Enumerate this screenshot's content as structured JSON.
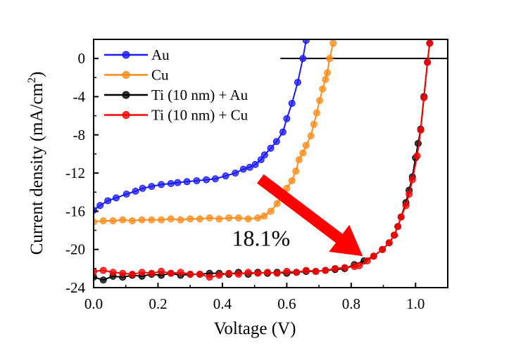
{
  "chart_data": {
    "type": "line",
    "title": "",
    "xlabel": "Voltage (V)",
    "ylabel": "Current density (mA/cm²)",
    "ylabel_main": "Current density (mA/cm",
    "ylabel_sup": "2",
    "ylabel_end": ")",
    "xlim": [
      0,
      1.1
    ],
    "ylim": [
      -24,
      2
    ],
    "xticks": [
      0.0,
      0.2,
      0.4,
      0.6,
      0.8,
      1.0
    ],
    "xtick_labels": [
      "0.0",
      "0.2",
      "0.4",
      "0.6",
      "0.8",
      "1.0"
    ],
    "yticks": [
      0,
      -4,
      -8,
      -12,
      -16,
      -20,
      -24
    ],
    "ytick_labels": [
      "0",
      "-4",
      "-8",
      "-12",
      "-16",
      "-20",
      "-24"
    ],
    "grid": false,
    "legend_position": "top-left",
    "zero_line": {
      "x_start": 0.58,
      "x_end": 1.1,
      "y": 0
    },
    "series": [
      {
        "name": "Au",
        "color": "#1a1aff",
        "x": [
          0.0,
          0.02,
          0.044,
          0.07,
          0.102,
          0.13,
          0.152,
          0.18,
          0.21,
          0.24,
          0.261,
          0.29,
          0.32,
          0.35,
          0.378,
          0.41,
          0.44,
          0.465,
          0.485,
          0.502,
          0.52,
          0.531,
          0.55,
          0.568,
          0.588,
          0.6,
          0.616,
          0.634,
          0.65,
          0.66
        ],
        "y": [
          -15.9,
          -15.4,
          -14.9,
          -14.6,
          -14.2,
          -13.9,
          -13.6,
          -13.4,
          -13.2,
          -13.1,
          -13.0,
          -12.9,
          -12.8,
          -12.7,
          -12.6,
          -12.3,
          -12.0,
          -11.6,
          -11.4,
          -11.1,
          -10.6,
          -10.1,
          -9.4,
          -8.7,
          -7.7,
          -6.3,
          -4.7,
          -2.5,
          0.0,
          1.9
        ]
      },
      {
        "name": "Cu",
        "color": "#ff8c1a",
        "x": [
          0.0,
          0.03,
          0.06,
          0.09,
          0.12,
          0.15,
          0.18,
          0.21,
          0.24,
          0.27,
          0.3,
          0.33,
          0.36,
          0.39,
          0.42,
          0.45,
          0.48,
          0.51,
          0.53,
          0.55,
          0.57,
          0.586,
          0.6,
          0.616,
          0.628,
          0.638,
          0.65,
          0.66,
          0.675,
          0.684,
          0.693,
          0.702,
          0.711,
          0.72,
          0.726,
          0.733,
          0.744
        ],
        "y": [
          -17.1,
          -17.0,
          -17.0,
          -16.9,
          -17.0,
          -16.9,
          -16.9,
          -16.9,
          -16.8,
          -16.9,
          -16.8,
          -16.8,
          -16.7,
          -16.8,
          -16.7,
          -16.7,
          -16.8,
          -16.7,
          -16.5,
          -16.0,
          -15.2,
          -14.3,
          -13.6,
          -12.8,
          -11.8,
          -10.6,
          -9.9,
          -9.1,
          -8.1,
          -6.9,
          -5.7,
          -4.4,
          -3.2,
          -2.2,
          -1.5,
          0.0,
          1.6
        ]
      },
      {
        "name": "Ti (10 nm) + Au",
        "color": "#000000",
        "x": [
          0.0,
          0.03,
          0.06,
          0.09,
          0.12,
          0.15,
          0.18,
          0.21,
          0.24,
          0.27,
          0.3,
          0.33,
          0.36,
          0.39,
          0.42,
          0.45,
          0.48,
          0.51,
          0.54,
          0.57,
          0.6,
          0.63,
          0.66,
          0.69,
          0.72,
          0.75,
          0.78,
          0.81,
          0.84,
          0.87,
          0.897,
          0.918,
          0.934,
          0.945,
          0.955,
          0.97,
          0.98,
          0.99,
          1.0,
          1.008,
          1.016,
          1.026,
          1.037,
          1.044
        ],
        "y": [
          -22.9,
          -23.2,
          -22.8,
          -22.9,
          -22.7,
          -22.8,
          -22.6,
          -22.7,
          -22.5,
          -22.7,
          -22.6,
          -22.6,
          -22.5,
          -22.5,
          -22.6,
          -22.4,
          -22.6,
          -22.4,
          -22.5,
          -22.4,
          -22.5,
          -22.4,
          -22.3,
          -22.3,
          -22.2,
          -22.1,
          -22.0,
          -21.6,
          -21.2,
          -20.7,
          -20.0,
          -19.3,
          -18.5,
          -17.6,
          -16.6,
          -15.1,
          -13.8,
          -12.4,
          -10.4,
          -8.9,
          -7.4,
          -4.0,
          -0.4,
          1.6
        ]
      },
      {
        "name": "Ti (10 nm) + Cu",
        "color": "#ff0000",
        "x": [
          0.0,
          0.03,
          0.06,
          0.09,
          0.12,
          0.15,
          0.18,
          0.21,
          0.24,
          0.27,
          0.3,
          0.33,
          0.36,
          0.39,
          0.42,
          0.45,
          0.48,
          0.51,
          0.54,
          0.57,
          0.6,
          0.63,
          0.66,
          0.69,
          0.72,
          0.75,
          0.78,
          0.81,
          0.825,
          0.85,
          0.87,
          0.897,
          0.918,
          0.934,
          0.945,
          0.955,
          0.97,
          0.98,
          0.99,
          1.005,
          1.016,
          1.026,
          1.037,
          1.044
        ],
        "y": [
          -22.3,
          -22.2,
          -22.4,
          -22.5,
          -22.6,
          -22.4,
          -22.5,
          -22.3,
          -22.5,
          -22.4,
          -22.6,
          -22.6,
          -22.9,
          -22.7,
          -22.5,
          -22.6,
          -22.4,
          -22.5,
          -22.4,
          -22.5,
          -22.3,
          -22.4,
          -22.2,
          -22.3,
          -22.2,
          -22.0,
          -21.9,
          -21.8,
          -21.7,
          -21.2,
          -20.7,
          -20.0,
          -19.3,
          -18.5,
          -17.6,
          -16.6,
          -15.4,
          -14.2,
          -12.7,
          -10.2,
          -7.5,
          -4.1,
          -0.4,
          1.6
        ]
      }
    ],
    "annotations": [
      {
        "type": "arrow",
        "color": "#ff0000",
        "from": [
          0.518,
          -12.6
        ],
        "to": [
          0.836,
          -20.7
        ]
      },
      {
        "type": "text",
        "text": "18.1%",
        "at": [
          0.52,
          -19.6
        ]
      }
    ]
  }
}
